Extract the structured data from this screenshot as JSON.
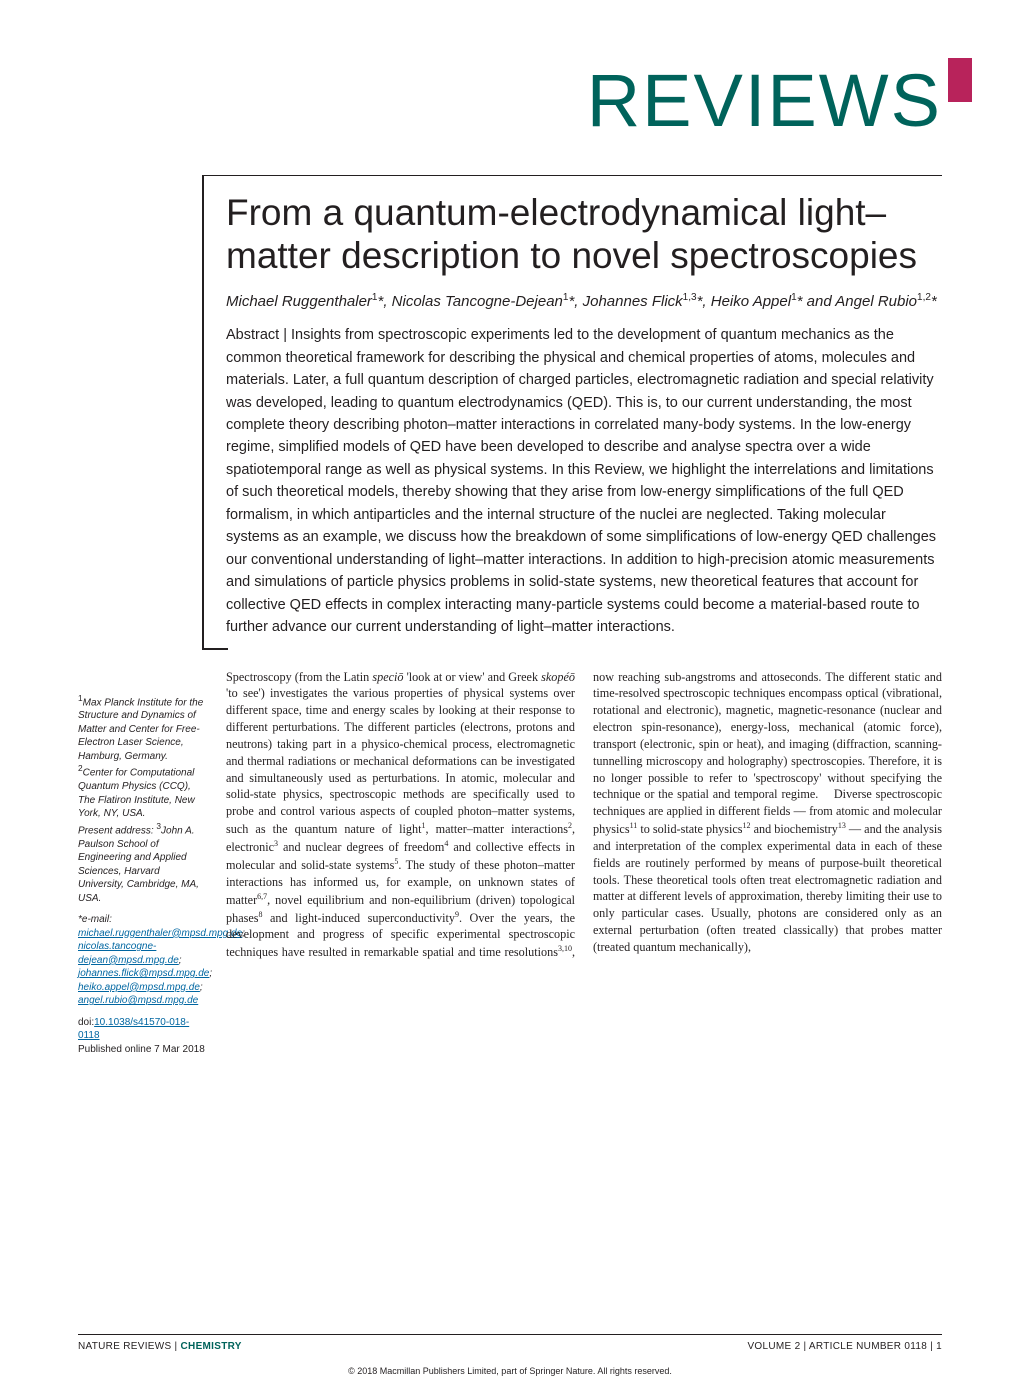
{
  "colors": {
    "accent_teal": "#00635b",
    "accent_magenta": "#b8235b",
    "link": "#0066a1",
    "text": "#231f20",
    "background": "#ffffff"
  },
  "section_heading": "REVIEWS",
  "article": {
    "title": "From a quantum-electrodynamical light–matter description to novel spectroscopies",
    "authors_html": "Michael Ruggenthaler<sup>1</sup>*, Nicolas Tancogne-Dejean<sup>1</sup>*, Johannes Flick<sup>1,3</sup>*, Heiko Appel<sup>1</sup>* and Angel Rubio<sup>1,2</sup>*",
    "abstract": "Abstract | Insights from spectroscopic experiments led to the development of quantum mechanics as the common theoretical framework for describing the physical and chemical properties of atoms, molecules and materials. Later, a full quantum description of charged particles, electromagnetic radiation and special relativity was developed, leading to quantum electrodynamics (QED). This is, to our current understanding, the most complete theory describing photon–matter interactions in correlated many-body systems. In the low-energy regime, simplified models of QED have been developed to describe and analyse spectra over a wide spatiotemporal range as well as physical systems. In this Review, we highlight the interrelations and limitations of such theoretical models, thereby showing that they arise from low-energy simplifications of the full QED formalism, in which antiparticles and the internal structure of the nuclei are neglected. Taking molecular systems as an example, we discuss how the breakdown of some simplifications of low-energy QED challenges our conventional understanding of light–matter interactions. In addition to high-precision atomic measurements and simulations of particle physics problems in solid-state systems, new theoretical features that account for collective QED effects in complex interacting many-particle systems could become a material-based route to further advance our current understanding of light–matter interactions."
  },
  "affiliations": {
    "aff1": "Max Planck Institute for the Structure and Dynamics of Matter and Center for Free-Electron Laser Science, Hamburg, Germany.",
    "aff2": "Center for Computational Quantum Physics (CCQ), The Flatiron Institute, New York, NY, USA.",
    "present": "Present address: ",
    "aff3": "John A. Paulson School of Engineering and Applied Sciences, Harvard University, Cambridge, MA, USA.",
    "email_label": "*e-mail: ",
    "emails": [
      "michael.ruggenthaler@mpsd.mpg.de",
      "nicolas.tancogne-dejean@mpsd.mpg.de",
      "johannes.flick@mpsd.mpg.de",
      "heiko.appel@mpsd.mpg.de",
      "angel.rubio@mpsd.mpg.de"
    ],
    "doi_label": "doi:",
    "doi": "10.1038/s41570-018-0118",
    "published": "Published online 7 Mar 2018"
  },
  "body": {
    "col_html": "Spectroscopy (from the Latin <i>speciō</i> 'look at or view' and Greek <i>skopéō</i> 'to see') investigates the various properties of physical systems over different space, time and energy scales by looking at their response to different perturbations. The different particles (electrons, protons and neutrons) taking part in a physico-chemical process, electromagnetic and thermal radiations or mechanical deformations can be investigated and simultaneously used as perturbations. In atomic, molecular and solid-state physics, spectroscopic methods are specifically used to probe and control various aspects of coupled photon–matter systems, such as the quantum nature of light<sup>1</sup>, matter–matter interactions<sup>2</sup>, electronic<sup>3</sup> and nuclear degrees of freedom<sup>4</sup> and collective effects in molecular and solid-state systems<sup>5</sup>. The study of these photon–matter interactions has informed us, for example, on unknown states of matter<sup>6,7</sup>, novel equilibrium and non-equilibrium (driven) topological phases<sup>8</sup> and light-induced superconductivity<sup>9</sup>. Over the years, the development and progress of specific experimental spectroscopic techniques have resulted in remarkable spatial and time resolutions<sup>3,10</sup>, now reaching sub-angstroms and attoseconds. The different static and time-resolved spectroscopic techniques encompass optical (vibrational, rotational and electronic), magnetic, magnetic-resonance (nuclear and electron spin-resonance), energy-loss, mechanical (atomic force), transport (electronic, spin or heat), and imaging (diffraction, scanning-tunnelling microscopy and holography) spectroscopies. Therefore, it is no longer possible to refer to 'spectroscopy' without specifying the technique or the spatial and temporal regime.&nbsp;&nbsp;&nbsp;&nbsp;Diverse spectroscopic techniques are applied in different fields — from atomic and molecular physics<sup>11</sup> to solid-state physics<sup>12</sup> and biochemistry<sup>13</sup> — and the analysis and interpretation of the complex experimental data in each of these fields are routinely performed by means of purpose-built theoretical tools. These theoretical tools often treat electromagnetic radiation and matter at different levels of approximation, thereby limiting their use to only particular cases. Usually, photons are considered only as an external perturbation (often treated classically) that probes matter (treated quantum mechanically),"
  },
  "footer": {
    "left_prefix": "NATURE REVIEWS | ",
    "journal": "CHEMISTRY",
    "right": "VOLUME 2 | ARTICLE NUMBER 0118 | 1",
    "copyright": "© 2018 Macmillan Publishers Limited, part of Springer Nature. All rights reserved."
  }
}
